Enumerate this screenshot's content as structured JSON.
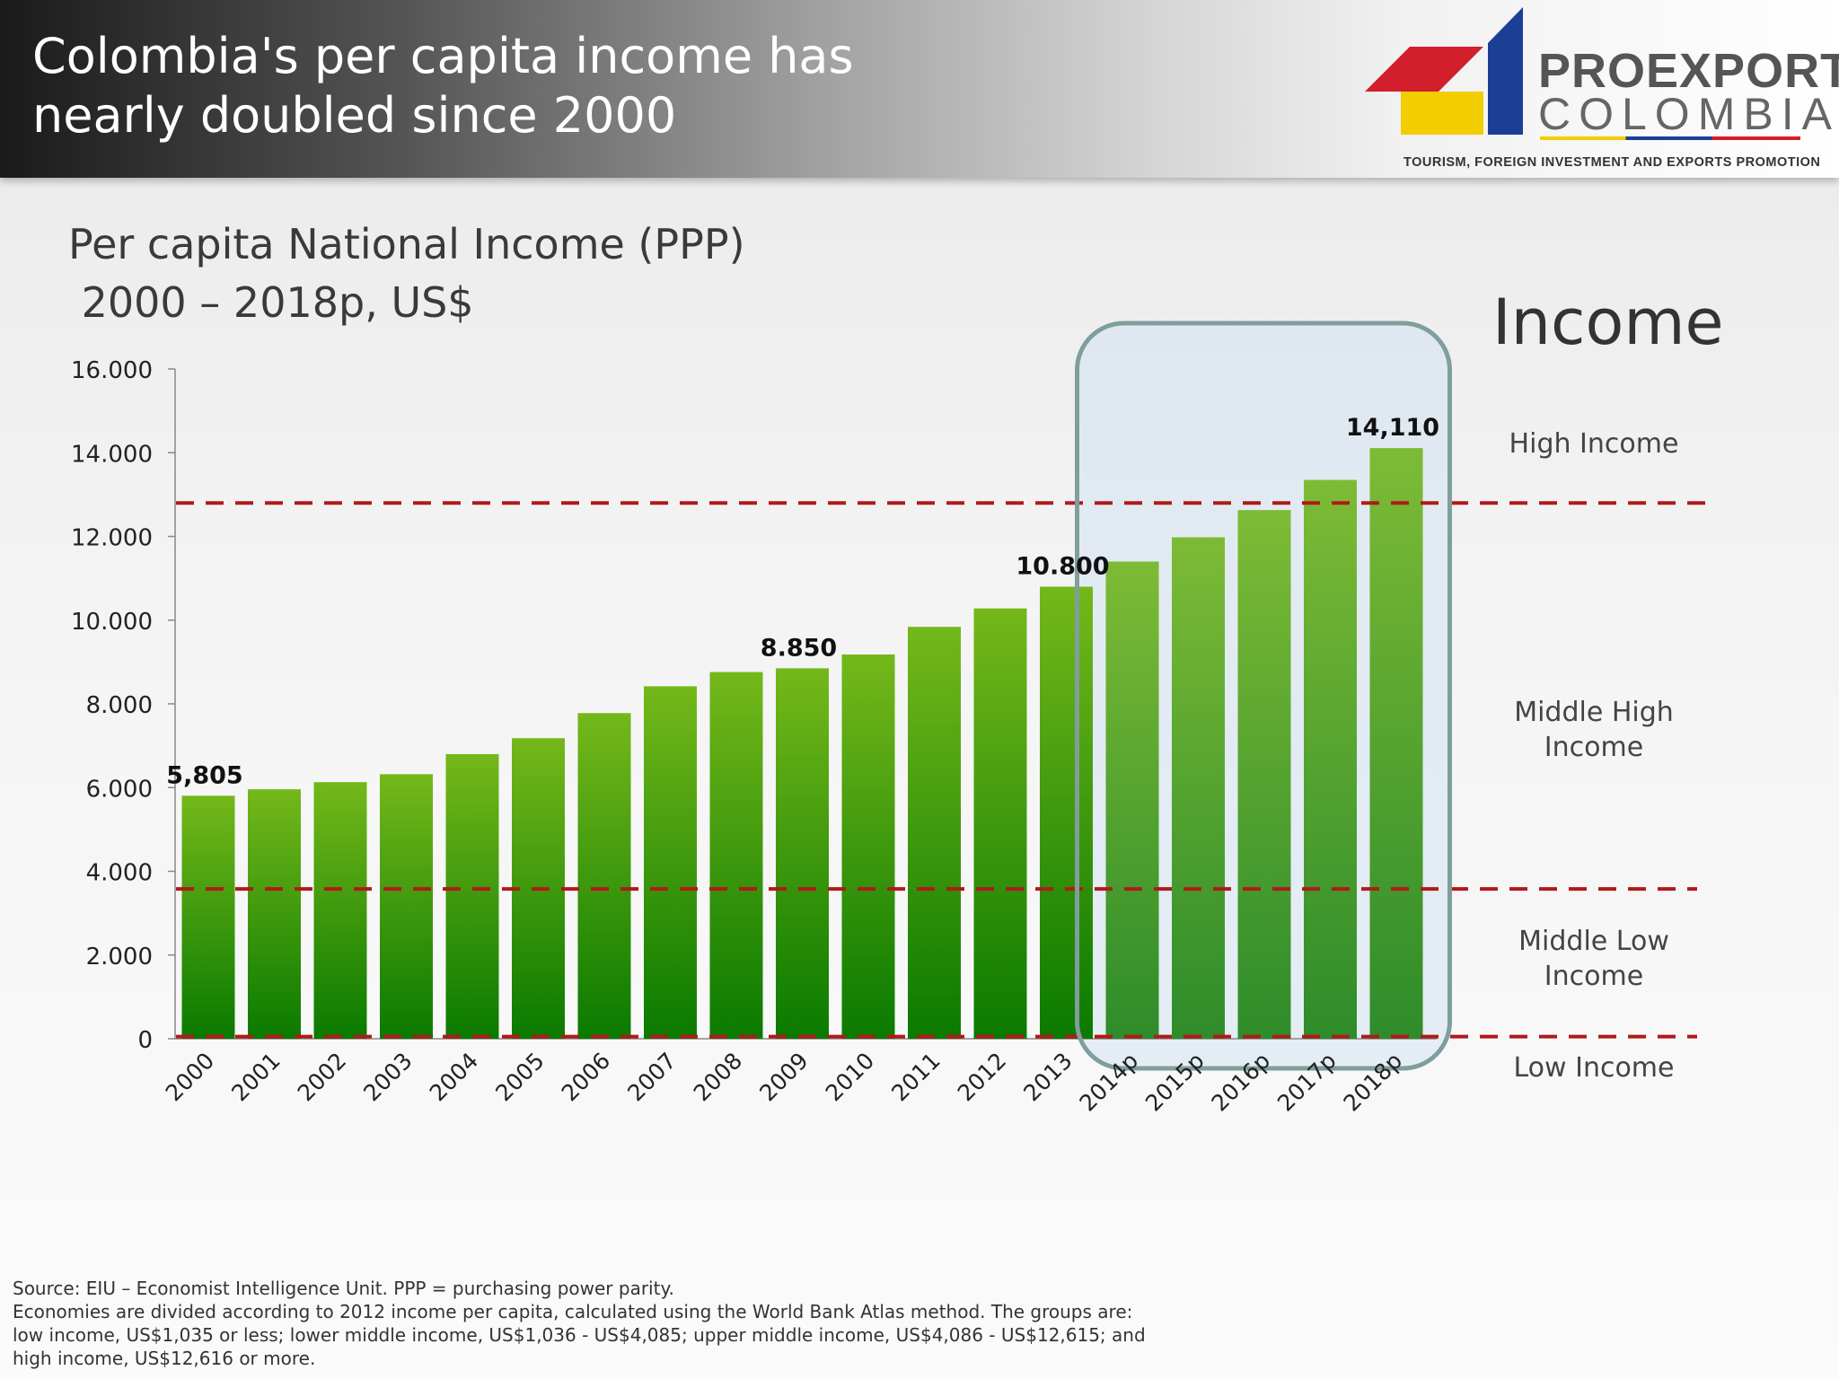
{
  "header": {
    "title": "Colombia's per capita income has nearly doubled since 2000"
  },
  "logo": {
    "word1": "PROEXPORT",
    "word2": "COLOMBIA",
    "tagline": "TOURISM, FOREIGN INVESTMENT AND EXPORTS PROMOTION",
    "colors": {
      "red": "#d21f2b",
      "yellow": "#f2cd00",
      "blue": "#1b3f94"
    }
  },
  "income_panel": {
    "heading": "Income",
    "bands": [
      {
        "label": "High Income"
      },
      {
        "label": "Middle High Income"
      },
      {
        "label": "Middle Low Income"
      },
      {
        "label": "Low Income"
      }
    ]
  },
  "footer": {
    "source": "Source: EIU – Economist Intelligence Unit. PPP = purchasing power parity.",
    "note": "Economies are divided according to 2012 income per capita, calculated using the World Bank Atlas method. The groups are: low income, US$1,035 or less; lower middle income, US$1,036 - US$4,085; upper middle income, US$4,086 - US$12,615; and high income, US$12,616 or more."
  },
  "chart_data": {
    "type": "bar",
    "title": "Per capita National Income (PPP)\n 2000 – 2018p, US$",
    "categories": [
      "2000",
      "2001",
      "2002",
      "2003",
      "2004",
      "2005",
      "2006",
      "2007",
      "2008",
      "2009",
      "2010",
      "2011",
      "2012",
      "2013",
      "2014p",
      "2015p",
      "2016p",
      "2017p",
      "2018p"
    ],
    "values": [
      5805,
      5960,
      6130,
      6320,
      6800,
      7180,
      7780,
      8420,
      8760,
      8850,
      9180,
      9840,
      10280,
      10800,
      11400,
      11980,
      12630,
      13350,
      14110
    ],
    "ylim": [
      0,
      16000
    ],
    "yticks": [
      "0",
      "2.000",
      "4.000",
      "6.000",
      "8.000",
      "10.000",
      "12.000",
      "14.000",
      "16.000"
    ],
    "data_labels": [
      {
        "index": 0,
        "text": "5,805"
      },
      {
        "index": 9,
        "text": "8.850"
      },
      {
        "index": 13,
        "text": "10.800"
      },
      {
        "index": 18,
        "text": "14,110"
      }
    ],
    "thresholds": [
      12800,
      3580,
      50
    ],
    "highlight": {
      "from": "2014p",
      "to": "2018p"
    },
    "colors": {
      "bar_top": "#74b81a",
      "bar_bottom": "#0a7a00",
      "threshold": "#b01a1a",
      "highlight_border": "#7f9e9c"
    }
  }
}
